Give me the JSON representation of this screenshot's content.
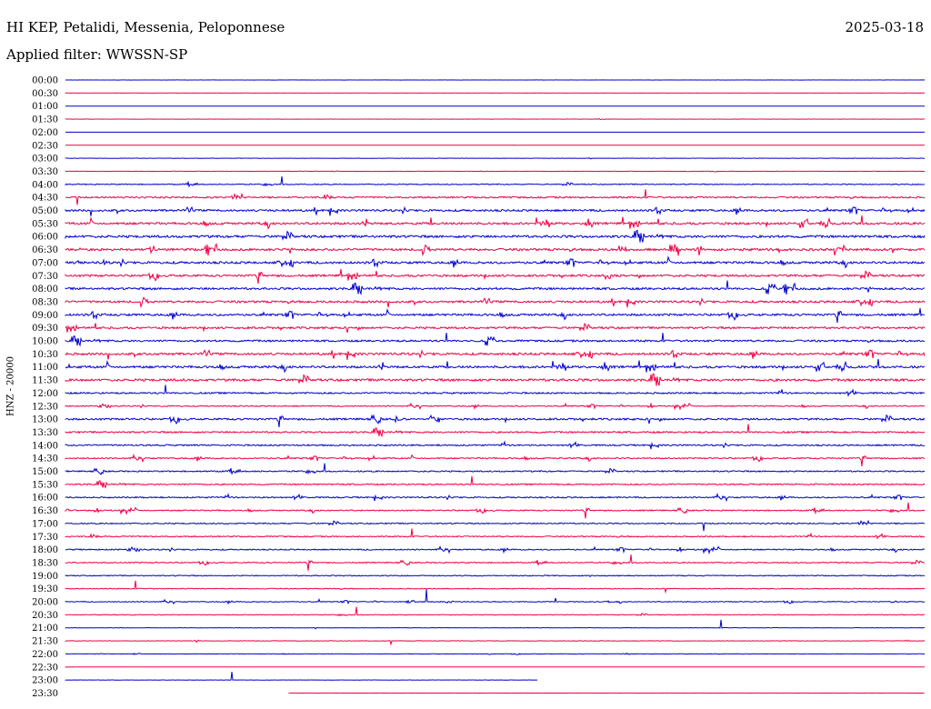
{
  "header": {
    "title": "HI KEP, Petalidi, Messenia, Peloponnese",
    "date": "2025-03-18",
    "filter": "Applied filter: WWSSN-SP"
  },
  "chart_data": {
    "type": "line",
    "ylabel": "HNZ - 20000",
    "colors": [
      "#0000cc",
      "#ee0044"
    ],
    "rows": [
      {
        "label": "00:00",
        "activity": 0.05,
        "end": 1
      },
      {
        "label": "00:30",
        "activity": 0.02,
        "end": 1
      },
      {
        "label": "01:00",
        "activity": 0.0,
        "end": 1
      },
      {
        "label": "01:30",
        "activity": 0.08,
        "end": 1
      },
      {
        "label": "02:00",
        "activity": 0.0,
        "end": 1
      },
      {
        "label": "02:30",
        "activity": 0.03,
        "end": 1
      },
      {
        "label": "03:00",
        "activity": 0.12,
        "end": 1
      },
      {
        "label": "03:30",
        "activity": 0.1,
        "end": 1
      },
      {
        "label": "04:00",
        "activity": 0.35,
        "end": 1
      },
      {
        "label": "04:30",
        "activity": 0.6,
        "end": 1
      },
      {
        "label": "05:00",
        "activity": 0.75,
        "end": 1
      },
      {
        "label": "05:30",
        "activity": 0.85,
        "end": 1
      },
      {
        "label": "06:00",
        "activity": 0.9,
        "end": 1
      },
      {
        "label": "06:30",
        "activity": 0.85,
        "end": 1
      },
      {
        "label": "07:00",
        "activity": 0.85,
        "end": 1
      },
      {
        "label": "07:30",
        "activity": 0.8,
        "end": 1
      },
      {
        "label": "08:00",
        "activity": 0.8,
        "end": 1
      },
      {
        "label": "08:30",
        "activity": 0.8,
        "end": 1
      },
      {
        "label": "09:00",
        "activity": 0.8,
        "end": 1
      },
      {
        "label": "09:30",
        "activity": 0.75,
        "end": 1
      },
      {
        "label": "10:00",
        "activity": 0.7,
        "end": 1
      },
      {
        "label": "10:30",
        "activity": 0.85,
        "end": 1
      },
      {
        "label": "11:00",
        "activity": 0.85,
        "end": 1
      },
      {
        "label": "11:30",
        "activity": 0.9,
        "end": 1
      },
      {
        "label": "12:00",
        "activity": 0.6,
        "end": 1
      },
      {
        "label": "12:30",
        "activity": 0.4,
        "end": 1
      },
      {
        "label": "13:00",
        "activity": 0.7,
        "end": 1
      },
      {
        "label": "13:30",
        "activity": 0.6,
        "end": 1
      },
      {
        "label": "14:00",
        "activity": 0.55,
        "end": 1
      },
      {
        "label": "14:30",
        "activity": 0.5,
        "end": 1
      },
      {
        "label": "15:00",
        "activity": 0.5,
        "end": 1
      },
      {
        "label": "15:30",
        "activity": 0.5,
        "end": 1
      },
      {
        "label": "16:00",
        "activity": 0.5,
        "end": 1
      },
      {
        "label": "16:30",
        "activity": 0.45,
        "end": 1
      },
      {
        "label": "17:00",
        "activity": 0.45,
        "end": 1
      },
      {
        "label": "17:30",
        "activity": 0.45,
        "end": 1
      },
      {
        "label": "18:00",
        "activity": 0.45,
        "end": 1
      },
      {
        "label": "18:30",
        "activity": 0.4,
        "end": 1
      },
      {
        "label": "19:00",
        "activity": 0.35,
        "end": 1
      },
      {
        "label": "19:30",
        "activity": 0.3,
        "end": 1
      },
      {
        "label": "20:00",
        "activity": 0.3,
        "end": 1
      },
      {
        "label": "20:30",
        "activity": 0.25,
        "end": 1
      },
      {
        "label": "21:00",
        "activity": 0.15,
        "end": 1
      },
      {
        "label": "21:30",
        "activity": 0.2,
        "end": 1
      },
      {
        "label": "22:00",
        "activity": 0.15,
        "end": 1
      },
      {
        "label": "22:30",
        "activity": 0.05,
        "end": 1
      },
      {
        "label": "23:00",
        "activity": 0.1,
        "end": 0.55
      },
      {
        "label": "23:30",
        "activity": 0.02,
        "start": 0.26,
        "end": 1
      }
    ]
  }
}
